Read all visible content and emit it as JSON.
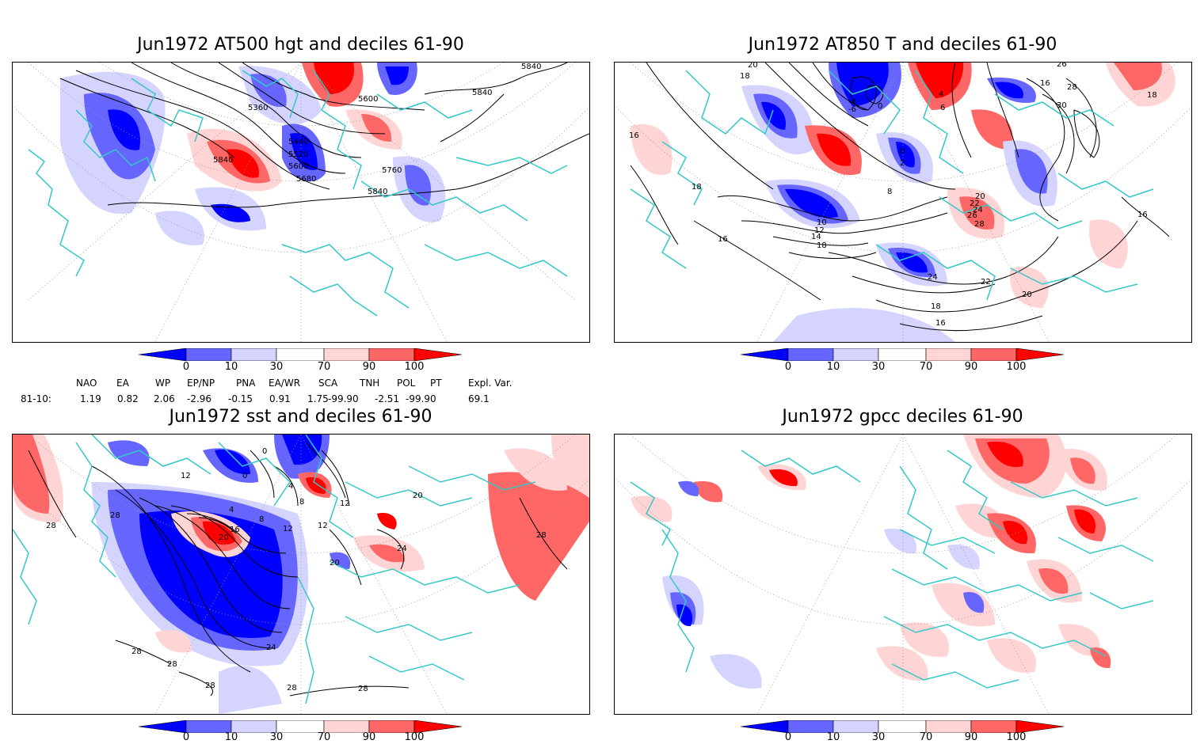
{
  "panels": [
    {
      "title": "Jun1972 AT500 hgt and deciles 61-90",
      "contour_labels": [
        "5840",
        "5360",
        "5600",
        "5840",
        "5840",
        "5440",
        "5520",
        "5600",
        "5680",
        "5760",
        "5840"
      ]
    },
    {
      "title": "Jun1972 AT850 T and deciles 61-90",
      "contour_labels": [
        "20",
        "18",
        "-4",
        "-6",
        "0",
        "4",
        "6",
        "16",
        "26",
        "28",
        "30",
        "18",
        "0",
        "2",
        "8",
        "18",
        "16",
        "10",
        "12",
        "14",
        "18",
        "20",
        "22",
        "24",
        "26",
        "28",
        "24",
        "22",
        "20",
        "18",
        "16",
        "16",
        "16"
      ]
    },
    {
      "title": "Jun1972 sst and deciles 61-90",
      "contour_labels": [
        "12",
        "28",
        "28",
        "0",
        "0",
        "4",
        "8",
        "12",
        "4",
        "8",
        "12",
        "16",
        "20",
        "12",
        "20",
        "24",
        "20",
        "28",
        "24",
        "28",
        "28",
        "28",
        "28",
        "28"
      ]
    },
    {
      "title": "Jun1972 gpcc deciles 61-90",
      "contour_labels": []
    }
  ],
  "colorbar": {
    "ticks": [
      "0",
      "10",
      "30",
      "70",
      "90",
      "100"
    ],
    "colors": [
      "#0000ff",
      "#6666ff",
      "#d4d4ff",
      "#ffffff",
      "#ffd4d4",
      "#ff6666",
      "#ff0000"
    ]
  },
  "indices": {
    "headers": [
      "NAO",
      "EA",
      "WP",
      "EP/NP",
      "PNA",
      "EA/WR",
      "SCA",
      "TNH",
      "POL",
      "PT",
      "Expl. Var."
    ],
    "row_label": "81-10:",
    "values": [
      "1.19",
      "0.82",
      "2.06",
      "-2.96",
      "-0.15",
      "0.91",
      "1.75",
      "-99.90",
      "-2.51",
      "-99.90",
      "69.1"
    ]
  },
  "colors": {
    "coast": "#33c8c8",
    "contour": "#000000",
    "grid": "#999999"
  }
}
